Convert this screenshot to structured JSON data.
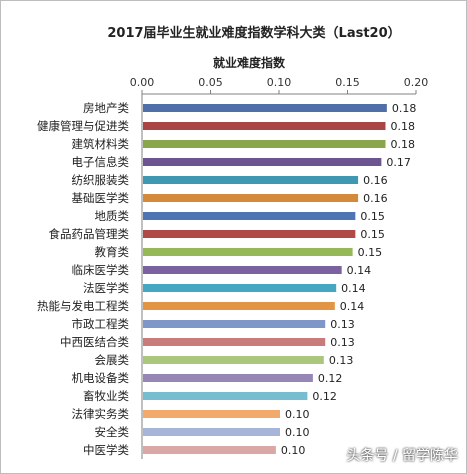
{
  "chart_data": {
    "type": "bar",
    "orientation": "horizontal",
    "title": "2017届毕业生就业难度指数学科大类（Last20）",
    "xlabel": "就业难度指数",
    "xaxis_position": "top",
    "xlim": [
      0,
      0.2
    ],
    "xticks": [
      "0.00",
      "0.05",
      "0.10",
      "0.15",
      "0.20"
    ],
    "grid": false,
    "legend": "none",
    "categories": [
      "房地产类",
      "健康管理与促进类",
      "建筑材料类",
      "电子信息类",
      "纺织服装类",
      "基础医学类",
      "地质类",
      "食品药品管理类",
      "教育类",
      "临床医学类",
      "法医学类",
      "热能与发电工程类",
      "市政工程类",
      "中西医结合类",
      "会展类",
      "机电设备类",
      "畜牧业类",
      "法律实务类",
      "安全类",
      "中医学类"
    ],
    "values": [
      0.178,
      0.177,
      0.177,
      0.174,
      0.157,
      0.157,
      0.155,
      0.155,
      0.153,
      0.145,
      0.141,
      0.14,
      0.133,
      0.133,
      0.132,
      0.124,
      0.12,
      0.1,
      0.1,
      0.097
    ],
    "data_labels": [
      "0.18",
      "0.18",
      "0.18",
      "0.17",
      "0.16",
      "0.16",
      "0.15",
      "0.15",
      "0.15",
      "0.14",
      "0.14",
      "0.14",
      "0.13",
      "0.13",
      "0.13",
      "0.12",
      "0.12",
      "0.10",
      "0.10",
      "0.10"
    ],
    "colors": [
      "#4f6fa8",
      "#a94645",
      "#8aa64d",
      "#6b5490",
      "#3f98b1",
      "#d58a3b",
      "#4f74b4",
      "#b04a46",
      "#97b857",
      "#7a62a0",
      "#45a7c1",
      "#e39546",
      "#7e96c8",
      "#c87b7a",
      "#abc77d",
      "#9586b5",
      "#77bdd0",
      "#f1a96c",
      "#a7b6d8",
      "#d9a7a6"
    ]
  },
  "watermark": "头条号 / 留学陈华"
}
